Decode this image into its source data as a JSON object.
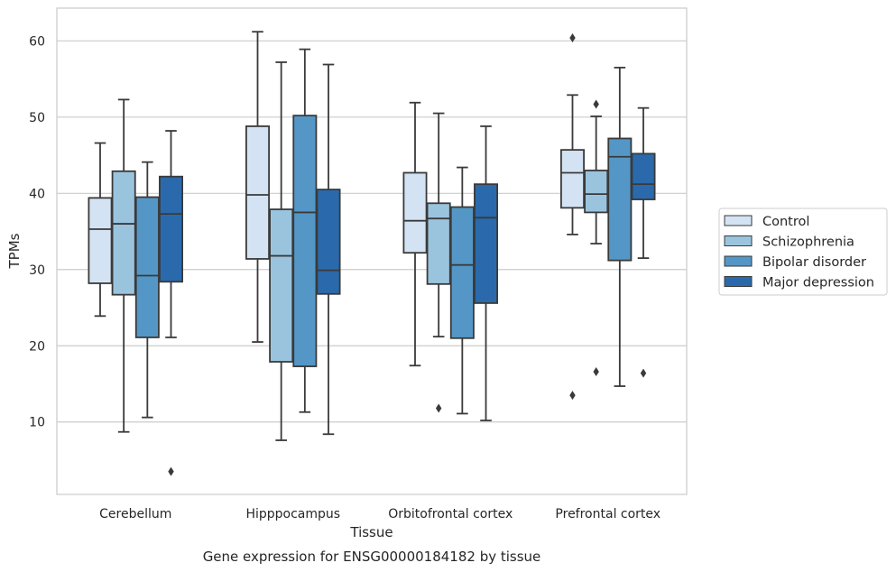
{
  "caption": "Gene expression for ENSG00000184182 by tissue",
  "chart_data": {
    "type": "box",
    "xlabel": "Tissue",
    "ylabel": "TPMs",
    "ylim": [
      0.5,
      64.3
    ],
    "yticks": [
      10,
      20,
      30,
      40,
      50,
      60
    ],
    "grid": "horizontal",
    "legend_position": "center-right outside",
    "categories": [
      "Cerebellum",
      "Hipppocampus",
      "Orbitofrontal cortex",
      "Prefrontal cortex"
    ],
    "series": [
      {
        "name": "Control",
        "color": "#d4e3f3",
        "boxes": [
          {
            "whisker_low": 23.9,
            "q1": 28.2,
            "median": 35.3,
            "q3": 39.4,
            "whisker_high": 46.6,
            "outliers": []
          },
          {
            "whisker_low": 20.5,
            "q1": 31.4,
            "median": 39.8,
            "q3": 48.8,
            "whisker_high": 61.2,
            "outliers": []
          },
          {
            "whisker_low": 17.4,
            "q1": 32.2,
            "median": 36.4,
            "q3": 42.7,
            "whisker_high": 51.9,
            "outliers": []
          },
          {
            "whisker_low": 34.6,
            "q1": 38.1,
            "median": 42.7,
            "q3": 45.7,
            "whisker_high": 52.9,
            "outliers": [
              60.4,
              13.5
            ]
          }
        ]
      },
      {
        "name": "Schizophrenia",
        "color": "#9ac4de",
        "boxes": [
          {
            "whisker_low": 8.7,
            "q1": 26.7,
            "median": 36.0,
            "q3": 42.9,
            "whisker_high": 52.3,
            "outliers": []
          },
          {
            "whisker_low": 7.6,
            "q1": 17.9,
            "median": 31.8,
            "q3": 37.9,
            "whisker_high": 57.2,
            "outliers": []
          },
          {
            "whisker_low": 21.2,
            "q1": 28.1,
            "median": 36.7,
            "q3": 38.7,
            "whisker_high": 50.5,
            "outliers": [
              11.8
            ]
          },
          {
            "whisker_low": 33.4,
            "q1": 37.5,
            "median": 39.9,
            "q3": 43.0,
            "whisker_high": 50.1,
            "outliers": [
              51.7,
              16.6
            ]
          }
        ]
      },
      {
        "name": "Bipolar disorder",
        "color": "#5497c6",
        "boxes": [
          {
            "whisker_low": 10.6,
            "q1": 21.1,
            "median": 29.2,
            "q3": 39.5,
            "whisker_high": 44.1,
            "outliers": []
          },
          {
            "whisker_low": 11.3,
            "q1": 17.3,
            "median": 37.5,
            "q3": 50.2,
            "whisker_high": 58.9,
            "outliers": []
          },
          {
            "whisker_low": 11.1,
            "q1": 21.0,
            "median": 30.6,
            "q3": 38.2,
            "whisker_high": 43.4,
            "outliers": []
          },
          {
            "whisker_low": 14.7,
            "q1": 31.2,
            "median": 44.8,
            "q3": 47.2,
            "whisker_high": 56.5,
            "outliers": []
          }
        ]
      },
      {
        "name": "Major depression",
        "color": "#2a6aac",
        "boxes": [
          {
            "whisker_low": 21.1,
            "q1": 28.4,
            "median": 37.3,
            "q3": 42.2,
            "whisker_high": 48.2,
            "outliers": [
              3.5
            ]
          },
          {
            "whisker_low": 8.4,
            "q1": 26.8,
            "median": 29.9,
            "q3": 40.5,
            "whisker_high": 56.9,
            "outliers": []
          },
          {
            "whisker_low": 10.2,
            "q1": 25.6,
            "median": 36.8,
            "q3": 41.2,
            "whisker_high": 48.8,
            "outliers": []
          },
          {
            "whisker_low": 31.5,
            "q1": 39.2,
            "median": 41.2,
            "q3": 45.2,
            "whisker_high": 51.2,
            "outliers": [
              16.4
            ]
          }
        ]
      }
    ]
  }
}
